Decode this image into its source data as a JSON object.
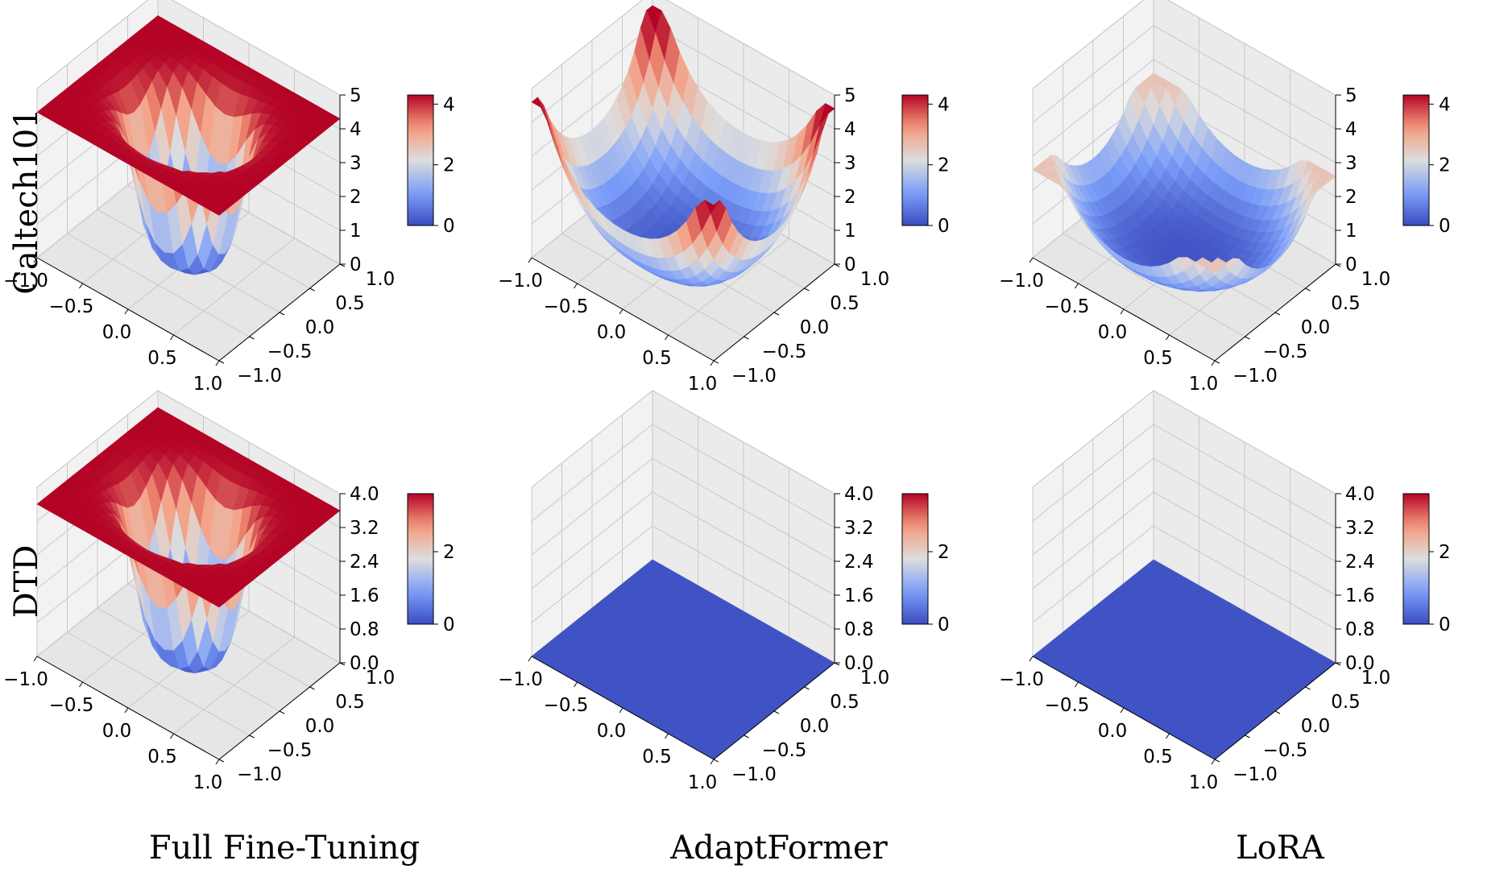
{
  "row_labels": [
    "Caltech101",
    "DTD"
  ],
  "column_labels": [
    "Full Fine-Tuning",
    "AdaptFormer",
    "LoRA"
  ],
  "colors": {
    "cmap": "coolwarm",
    "low": "#3b4cc0",
    "mid": "#dddddd",
    "high": "#b40426",
    "edge_line": "#f5c518",
    "edge_line_bowl": "#8e44ad"
  },
  "chart_data": [
    {
      "type": "surface3d",
      "row": "Caltech101",
      "column": "Full Fine-Tuning",
      "surface": "plateau with central well",
      "surface_max": 4.3,
      "surface_min": 0,
      "xticks": [
        "−1.0",
        "−0.5",
        "0.0",
        "0.5",
        "1.0"
      ],
      "yticks": [
        "−1.0",
        "−0.5",
        "0.0",
        "0.5",
        "1.0"
      ],
      "zticks": [
        "0",
        "1",
        "2",
        "3",
        "4",
        "5"
      ],
      "zlim": [
        0,
        5
      ],
      "colorbar_ticks": [
        "0",
        "2",
        "4"
      ],
      "colorbar_range": [
        0,
        4.3
      ]
    },
    {
      "type": "surface3d",
      "row": "Caltech101",
      "column": "AdaptFormer",
      "surface": "bowl",
      "surface_max": 4.6,
      "surface_min": 0,
      "xticks": [
        "−1.0",
        "−0.5",
        "0.0",
        "0.5",
        "1.0"
      ],
      "yticks": [
        "−1.0",
        "−0.5",
        "0.0",
        "0.5",
        "1.0"
      ],
      "zticks": [
        "0",
        "1",
        "2",
        "3",
        "4",
        "5"
      ],
      "zlim": [
        0,
        5
      ],
      "colorbar_ticks": [
        "0",
        "2",
        "4"
      ],
      "colorbar_range": [
        0,
        4.3
      ]
    },
    {
      "type": "surface3d",
      "row": "Caltech101",
      "column": "LoRA",
      "surface": "shallow bowl",
      "surface_max": 2.6,
      "surface_min": 0,
      "xticks": [
        "−1.0",
        "−0.5",
        "0.0",
        "0.5",
        "1.0"
      ],
      "yticks": [
        "−1.0",
        "−0.5",
        "0.0",
        "0.5",
        "1.0"
      ],
      "zticks": [
        "0",
        "1",
        "2",
        "3",
        "4",
        "5"
      ],
      "zlim": [
        0,
        5
      ],
      "colorbar_ticks": [
        "0",
        "2",
        "4"
      ],
      "colorbar_range": [
        0,
        4.3
      ]
    },
    {
      "type": "surface3d",
      "row": "DTD",
      "column": "Full Fine-Tuning",
      "surface": "plateau with central well",
      "surface_max": 3.6,
      "surface_min": 0,
      "xticks": [
        "−1.0",
        "−0.5",
        "0.0",
        "0.5",
        "1.0"
      ],
      "yticks": [
        "−1.0",
        "−0.5",
        "0.0",
        "0.5",
        "1.0"
      ],
      "zticks": [
        "0.0",
        "0.8",
        "1.6",
        "2.4",
        "3.2",
        "4.0"
      ],
      "zlim": [
        0,
        4
      ],
      "colorbar_ticks": [
        "0",
        "2"
      ],
      "colorbar_range": [
        0,
        3.6
      ]
    },
    {
      "type": "surface3d",
      "row": "DTD",
      "column": "AdaptFormer",
      "surface": "flat",
      "surface_max": 0,
      "surface_min": 0,
      "xticks": [
        "−1.0",
        "−0.5",
        "0.0",
        "0.5",
        "1.0"
      ],
      "yticks": [
        "−1.0",
        "−0.5",
        "0.0",
        "0.5",
        "1.0"
      ],
      "zticks": [
        "0.0",
        "0.8",
        "1.6",
        "2.4",
        "3.2",
        "4.0"
      ],
      "zlim": [
        0,
        4
      ],
      "colorbar_ticks": [
        "0",
        "2"
      ],
      "colorbar_range": [
        0,
        3.6
      ]
    },
    {
      "type": "surface3d",
      "row": "DTD",
      "column": "LoRA",
      "surface": "flat",
      "surface_max": 0,
      "surface_min": 0,
      "xticks": [
        "−1.0",
        "−0.5",
        "0.0",
        "0.5",
        "1.0"
      ],
      "yticks": [
        "−1.0",
        "−0.5",
        "0.0",
        "0.5",
        "1.0"
      ],
      "zticks": [
        "0.0",
        "0.8",
        "1.6",
        "2.4",
        "3.2",
        "4.0"
      ],
      "zlim": [
        0,
        4
      ],
      "colorbar_ticks": [
        "0",
        "2"
      ],
      "colorbar_range": [
        0,
        3.6
      ]
    }
  ]
}
